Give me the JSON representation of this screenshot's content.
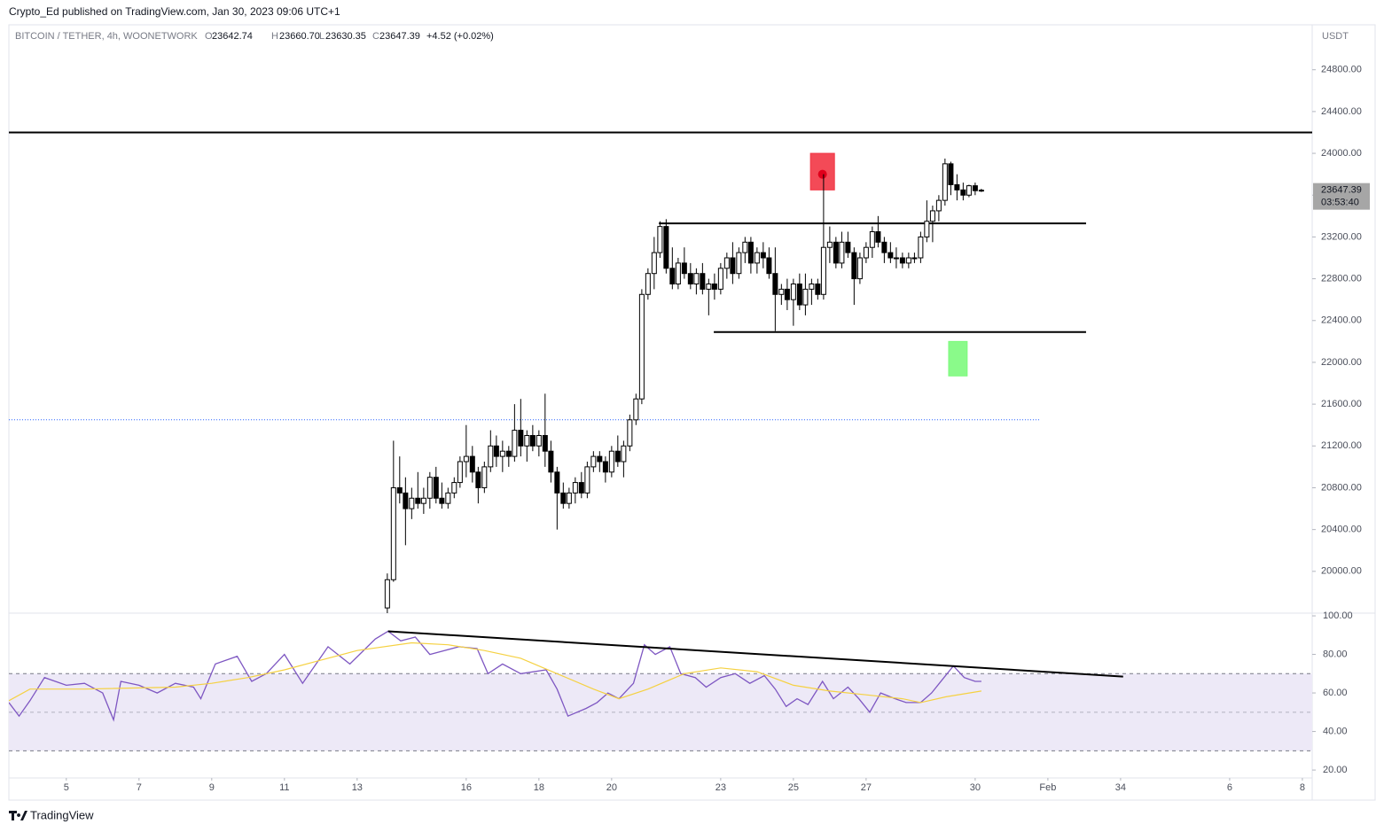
{
  "header": {
    "publisher": "Crypto_Ed published on TradingView.com, Jan 30, 2023 09:06 UTC+1"
  },
  "footer": {
    "brand": "TradingView"
  },
  "chart_data": [
    {
      "type": "candlestick",
      "symbol": "BITCOIN / TETHER, 4h, WOONETWORK",
      "ohlc_letters": [
        "O",
        "H",
        "L",
        "C"
      ],
      "legend_values": [
        "23642.74",
        "23660.70",
        "23630.35",
        "23647.39"
      ],
      "change_label": "+4.52 (+0.02%)",
      "currency": "USDT",
      "countdown": "03:53:40",
      "up_color": "#ffffff",
      "down_color": "#000000",
      "border_color": "#000000",
      "x": [
        13.83,
        14,
        14.17,
        14.33,
        14.5,
        14.67,
        14.83,
        15,
        15.17,
        15.33,
        15.5,
        15.67,
        15.83,
        16,
        16.17,
        16.33,
        16.5,
        16.67,
        16.83,
        17,
        17.17,
        17.33,
        17.5,
        17.67,
        17.83,
        18,
        18.17,
        18.33,
        18.5,
        18.67,
        18.83,
        19,
        19.17,
        19.33,
        19.5,
        19.67,
        19.83,
        20,
        20.17,
        20.33,
        20.5,
        20.67,
        20.83,
        21,
        21.17,
        21.33,
        21.5,
        21.67,
        21.83,
        22,
        22.17,
        22.33,
        22.5,
        22.67,
        22.83,
        23,
        23.17,
        23.33,
        23.5,
        23.67,
        23.83,
        24,
        24.17,
        24.33,
        24.5,
        24.67,
        24.83,
        25,
        25.17,
        25.33,
        25.5,
        25.67,
        25.83,
        26,
        26.17,
        26.33,
        26.5,
        26.67,
        26.83,
        27,
        27.17,
        27.33,
        27.5,
        27.67,
        27.83,
        28,
        28.17,
        28.33,
        28.5,
        28.67,
        28.83,
        29,
        29.17,
        29.33,
        29.5,
        29.67,
        29.83,
        30,
        30.17
      ],
      "open": [
        19650,
        19920,
        20800,
        20750,
        20600,
        20700,
        20650,
        20700,
        20900,
        20700,
        20650,
        20750,
        20850,
        21050,
        21100,
        20950,
        20800,
        21000,
        21200,
        21100,
        21150,
        21100,
        21350,
        21200,
        21300,
        21200,
        21300,
        21150,
        20950,
        20750,
        20650,
        20750,
        20850,
        20750,
        21000,
        21100,
        21050,
        20950,
        21150,
        21050,
        21200,
        21450,
        21650,
        22650,
        22850,
        23050,
        23300,
        22900,
        22750,
        22950,
        22850,
        22750,
        22850,
        22700,
        22750,
        22700,
        22900,
        23000,
        22850,
        23050,
        23150,
        22950,
        23050,
        23000,
        22850,
        22650,
        22700,
        22600,
        22750,
        22550,
        22700,
        22750,
        22650,
        23100,
        23150,
        22950,
        23150,
        23050,
        22800,
        23000,
        23100,
        23250,
        23150,
        23050,
        23000,
        23000,
        22950,
        23000,
        23000,
        23200,
        23350,
        23450,
        23550,
        23900,
        23700,
        23650,
        23600,
        23690,
        23642.74
      ],
      "high": [
        19980,
        21250,
        21100,
        20900,
        20800,
        20950,
        20800,
        20950,
        21000,
        20850,
        20800,
        20900,
        21100,
        21400,
        21200,
        21000,
        21050,
        21350,
        21300,
        21250,
        21200,
        21600,
        21650,
        21350,
        21400,
        21350,
        21700,
        21250,
        21000,
        20850,
        20800,
        20900,
        20950,
        21050,
        21150,
        21150,
        21100,
        21200,
        21300,
        21250,
        21500,
        21700,
        22700,
        22900,
        23200,
        23350,
        23370,
        23100,
        23000,
        23100,
        22950,
        22900,
        22950,
        22800,
        22850,
        22950,
        23050,
        23150,
        23100,
        23200,
        23200,
        23100,
        23150,
        23100,
        23100,
        22750,
        22800,
        22800,
        22850,
        22850,
        22800,
        22800,
        23800,
        23300,
        23200,
        23250,
        23250,
        23100,
        23050,
        23150,
        23300,
        23400,
        23200,
        23150,
        23100,
        23050,
        23050,
        23050,
        23250,
        23550,
        23500,
        23600,
        23950,
        23920,
        23800,
        23720,
        23700,
        23720,
        23660.7
      ],
      "low": [
        19600,
        19900,
        20650,
        20250,
        20500,
        20600,
        20550,
        20600,
        20650,
        20600,
        20600,
        20700,
        20800,
        20900,
        20850,
        20650,
        20750,
        20950,
        21000,
        20950,
        21000,
        21050,
        21100,
        21050,
        21150,
        21100,
        21000,
        20850,
        20400,
        20600,
        20600,
        20650,
        20700,
        20700,
        20950,
        20950,
        20850,
        20900,
        21000,
        20900,
        21150,
        21400,
        21600,
        22600,
        22700,
        23000,
        22850,
        22700,
        22700,
        22800,
        22700,
        22650,
        22650,
        22450,
        22600,
        22650,
        22800,
        22750,
        22800,
        22950,
        22850,
        22850,
        22900,
        22800,
        22300,
        22550,
        22500,
        22350,
        22500,
        22450,
        22550,
        22600,
        22600,
        22950,
        22900,
        22900,
        23000,
        22550,
        22750,
        22950,
        23000,
        23100,
        22950,
        22950,
        22900,
        22900,
        22900,
        22950,
        22950,
        23150,
        23150,
        23350,
        23500,
        23600,
        23550,
        23550,
        23580,
        23600,
        23630.35
      ],
      "close": [
        19920,
        20800,
        20750,
        20600,
        20700,
        20650,
        20700,
        20900,
        20700,
        20650,
        20750,
        20850,
        21050,
        21100,
        20950,
        20800,
        21000,
        21200,
        21100,
        21150,
        21100,
        21350,
        21200,
        21300,
        21200,
        21300,
        21150,
        20950,
        20750,
        20650,
        20750,
        20850,
        20750,
        21000,
        21100,
        21050,
        20950,
        21150,
        21050,
        21200,
        21450,
        21650,
        22650,
        22850,
        23050,
        23300,
        22900,
        22750,
        22950,
        22850,
        22750,
        22850,
        22700,
        22750,
        22700,
        22900,
        23000,
        22850,
        23050,
        23150,
        22950,
        23050,
        23000,
        22850,
        22650,
        22700,
        22600,
        22750,
        22550,
        22700,
        22750,
        22650,
        23100,
        23150,
        22950,
        23150,
        23050,
        22800,
        23000,
        23100,
        23250,
        23150,
        23050,
        23000,
        23000,
        22950,
        23000,
        23000,
        23200,
        23350,
        23450,
        23550,
        23900,
        23700,
        23650,
        23600,
        23690,
        23642.74,
        23647.39
      ],
      "xlim": [
        3.42,
        39.27
      ],
      "ylim": [
        19600,
        25230
      ],
      "yticks": [
        {
          "value": 20000,
          "label": "20000.00"
        },
        {
          "value": 20400,
          "label": "20400.00"
        },
        {
          "value": 20800,
          "label": "20800.00"
        },
        {
          "value": 21200,
          "label": "21200.00"
        },
        {
          "value": 21600,
          "label": "21600.00"
        },
        {
          "value": 22000,
          "label": "22000.00"
        },
        {
          "value": 22400,
          "label": "22400.00"
        },
        {
          "value": 22800,
          "label": "22800.00"
        },
        {
          "value": 23200,
          "label": "23200.00"
        },
        {
          "value": 23600,
          "label": "23600.00"
        },
        {
          "value": 24000,
          "label": "24000.00"
        },
        {
          "value": 24400,
          "label": "24400.00"
        },
        {
          "value": 24800,
          "label": "24800.00"
        }
      ],
      "drawings": [
        {
          "kind": "hline",
          "price": 24200,
          "color": "#000000"
        },
        {
          "kind": "segment",
          "x": [
            21.3,
            33.05
          ],
          "price": 23330,
          "color": "#000000"
        },
        {
          "kind": "segment",
          "x": [
            22.81,
            33.05
          ],
          "price": 22290,
          "color": "#000000"
        },
        {
          "kind": "dotted",
          "x": [
            3.42,
            31.76
          ],
          "price": 21450,
          "color": "#2962ff"
        },
        {
          "kind": "box",
          "x": [
            25.47,
            26.13
          ],
          "price": [
            23650,
            24000
          ],
          "color": "#f23645",
          "dot": 23800
        },
        {
          "kind": "box",
          "x": [
            29.27,
            29.78
          ],
          "price": [
            21870,
            22200
          ],
          "color": "#7dfa7d"
        }
      ]
    },
    {
      "type": "line",
      "series": [
        {
          "color": "#7e57c2",
          "x": [
            3.42,
            3.7,
            4.0,
            4.4,
            5.0,
            5.5,
            6.0,
            6.3,
            6.5,
            7.0,
            7.5,
            8.0,
            8.5,
            8.7,
            9.1,
            9.7,
            10.1,
            10.5,
            11.0,
            11.5,
            12.2,
            12.8,
            13.5,
            13.85,
            14.2,
            14.6,
            15.0,
            15.8,
            16.3,
            16.6,
            17.0,
            17.5,
            18.2,
            18.5,
            18.8,
            19.3,
            19.6,
            19.9,
            20.2,
            20.6,
            20.9,
            21.2,
            21.6,
            21.9,
            22.3,
            22.6,
            23.0,
            23.4,
            23.8,
            24.2,
            24.5,
            24.8,
            25.1,
            25.4,
            25.8,
            26.1,
            26.5,
            26.8,
            27.1,
            27.4,
            27.8,
            28.1,
            28.5,
            28.8,
            29.1,
            29.4,
            29.7,
            30.0,
            30.17
          ],
          "values": [
            55,
            48,
            56,
            68,
            64,
            65,
            60,
            46,
            66,
            64,
            60,
            65,
            63,
            57,
            75,
            79,
            66,
            70,
            80,
            65,
            84,
            75,
            88,
            92,
            87,
            89,
            80,
            84,
            83,
            70,
            75,
            70,
            72,
            62,
            48,
            52,
            55,
            60,
            57,
            65,
            85,
            80,
            84,
            70,
            68,
            63,
            68,
            70,
            65,
            69,
            62,
            53,
            57,
            54,
            66,
            57,
            63,
            57,
            50,
            60,
            57,
            55,
            55,
            60,
            67,
            74,
            68,
            66,
            66
          ]
        },
        {
          "color": "#f5d142",
          "x": [
            3.42,
            4,
            5.5,
            8,
            9,
            10,
            11,
            12,
            13,
            14.5,
            15.5,
            16.5,
            17.5,
            18.5,
            19.5,
            20.2,
            21,
            22,
            23,
            24,
            25,
            26,
            27,
            28,
            28.5,
            29.2,
            30.17
          ],
          "values": [
            56,
            62,
            62,
            63,
            65,
            68,
            72,
            77,
            82,
            86,
            85,
            82,
            78,
            70,
            62,
            57,
            62,
            70,
            73,
            71,
            64,
            61,
            59,
            57,
            55,
            58,
            61
          ]
        }
      ],
      "bands": [
        70,
        50,
        30
      ],
      "band_fill": "#ede9f7",
      "trendline": {
        "x": [
          13.85,
          34.07
        ],
        "values": [
          92,
          68.5
        ],
        "color": "#000000"
      },
      "xlim": [
        3.42,
        39.27
      ],
      "ylim": [
        15.9,
        101.4
      ],
      "yticks": [
        {
          "value": 20,
          "label": "20.00"
        },
        {
          "value": 40,
          "label": "40.00"
        },
        {
          "value": 60,
          "label": "60.00"
        },
        {
          "value": 80,
          "label": "80.00"
        },
        {
          "value": 100,
          "label": "100.00"
        }
      ],
      "xticks": [
        5,
        7,
        9,
        11,
        13,
        16,
        18,
        20,
        23,
        25,
        27,
        30,
        {
          "value": 32,
          "label": "Feb"
        },
        34,
        {
          "value": 37,
          "label": "6"
        },
        {
          "value": 39,
          "label": "8"
        }
      ]
    }
  ]
}
